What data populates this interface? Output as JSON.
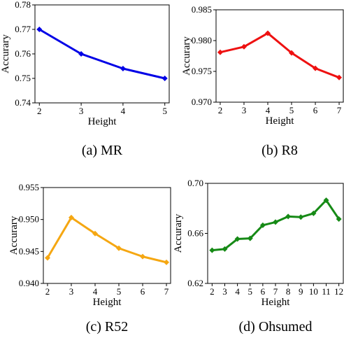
{
  "chart_data": [
    {
      "type": "line",
      "caption": "(a)  MR",
      "xlabel": "Height",
      "ylabel": "Accurary",
      "x": [
        2,
        3,
        4,
        5
      ],
      "xticks": [
        "2",
        "3",
        "4",
        "5"
      ],
      "ylim": [
        0.74,
        0.78
      ],
      "yticks": [
        "0.74",
        "0.75",
        "0.76",
        "0.77",
        "0.78"
      ],
      "series": [
        {
          "values": [
            0.77,
            0.76,
            0.754,
            0.75
          ],
          "color": "#0000e6"
        }
      ]
    },
    {
      "type": "line",
      "caption": "(b)  R8",
      "xlabel": "Height",
      "ylabel": "Accurary",
      "x": [
        2,
        3,
        4,
        5,
        6,
        7
      ],
      "xticks": [
        "2",
        "3",
        "4",
        "5",
        "6",
        "7"
      ],
      "ylim": [
        0.97,
        0.985
      ],
      "yticks": [
        "0.970",
        "0.975",
        "0.980",
        "0.985"
      ],
      "series": [
        {
          "values": [
            0.9781,
            0.979,
            0.9812,
            0.978,
            0.9755,
            0.974
          ],
          "color": "#ee1111"
        }
      ]
    },
    {
      "type": "line",
      "caption": "(c)  R52",
      "xlabel": "Height",
      "ylabel": "Accurary",
      "x": [
        2,
        3,
        4,
        5,
        6,
        7
      ],
      "xticks": [
        "2",
        "3",
        "4",
        "5",
        "6",
        "7"
      ],
      "ylim": [
        0.94,
        0.955
      ],
      "yticks": [
        "0.940",
        "0.945",
        "0.950",
        "0.955"
      ],
      "series": [
        {
          "values": [
            0.944,
            0.9503,
            0.9478,
            0.9455,
            0.9442,
            0.9433
          ],
          "color": "#f5a712"
        }
      ]
    },
    {
      "type": "line",
      "caption": "(d)  Ohsumed",
      "xlabel": "Height",
      "ylabel": "Accurary",
      "x": [
        2,
        3,
        4,
        5,
        6,
        7,
        8,
        9,
        10,
        11,
        12
      ],
      "xticks": [
        "2",
        "3",
        "4",
        "5",
        "6",
        "7",
        "8",
        "9",
        "10",
        "11",
        "12"
      ],
      "ylim": [
        0.62,
        0.7
      ],
      "yticks": [
        "0.62",
        "0.66",
        "0.70"
      ],
      "series": [
        {
          "values": [
            0.6465,
            0.6475,
            0.6555,
            0.656,
            0.6665,
            0.669,
            0.6735,
            0.673,
            0.676,
            0.6865,
            0.6715
          ],
          "color": "#168a16"
        }
      ]
    }
  ]
}
